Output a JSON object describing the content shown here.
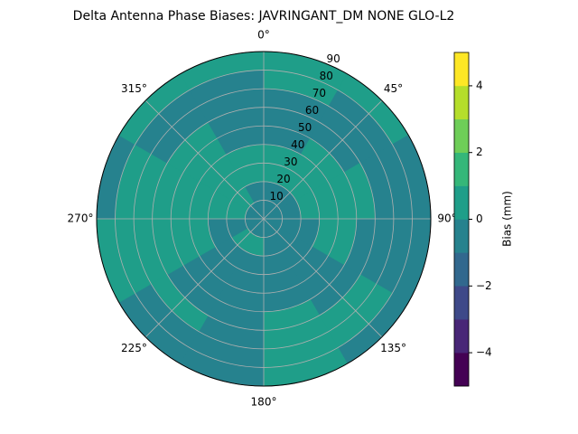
{
  "chart_data": {
    "type": "polar_contour",
    "title": "Delta Antenna Phase Biases: JAVRINGANT_DM   NONE GLO-L2",
    "colorbar_label": "Bias (mm)",
    "theta_edges": [
      0,
      30,
      60,
      90,
      120,
      150,
      180,
      210,
      240,
      270,
      300,
      330,
      360
    ],
    "r_edges": [
      0,
      10,
      20,
      30,
      40,
      50,
      60,
      70,
      80,
      90
    ],
    "values": [
      [
        -0.5,
        -0.5,
        -0.5,
        -0.5,
        -0.5,
        -0.5,
        -0.5,
        -0.5,
        -0.5,
        -0.5,
        -0.5,
        -0.5
      ],
      [
        -0.5,
        -0.5,
        -0.5,
        -0.5,
        -0.5,
        -0.5,
        0.5,
        0.5,
        -0.5,
        0.5,
        0.5,
        -0.5
      ],
      [
        0.5,
        0.5,
        0.5,
        -0.5,
        -0.5,
        -0.5,
        -0.5,
        -0.5,
        -0.5,
        0.5,
        0.5,
        0.5
      ],
      [
        0.5,
        0.5,
        0.5,
        0.5,
        -0.5,
        -0.5,
        -0.5,
        -0.5,
        0.5,
        0.5,
        0.5,
        0.5
      ],
      [
        -0.5,
        0.5,
        0.5,
        0.5,
        -0.5,
        -0.5,
        -0.5,
        -0.5,
        0.5,
        0.5,
        0.5,
        -0.5
      ],
      [
        -0.5,
        -0.5,
        0.5,
        -0.5,
        -0.5,
        0.5,
        -0.5,
        -0.5,
        0.5,
        0.5,
        0.5,
        -0.5
      ],
      [
        -0.5,
        -0.5,
        -0.5,
        -0.5,
        0.5,
        0.5,
        -0.5,
        0.5,
        0.5,
        0.5,
        -0.5,
        -0.5
      ],
      [
        0.5,
        -0.5,
        -0.5,
        -0.5,
        0.5,
        0.5,
        -0.5,
        -0.5,
        0.5,
        0.5,
        -0.5,
        -0.5
      ],
      [
        0.5,
        0.5,
        -0.5,
        -0.5,
        -0.5,
        0.5,
        -0.5,
        -0.5,
        0.5,
        -0.5,
        0.5,
        0.5
      ]
    ],
    "levels": [
      -5,
      -4,
      -3,
      -2,
      -1,
      0,
      1,
      2,
      3,
      4,
      5
    ],
    "colors": [
      "#440154",
      "#482677",
      "#3e4989",
      "#31688e",
      "#26828e",
      "#1f9e89",
      "#35b779",
      "#6ece58",
      "#b5de2b",
      "#fde725"
    ],
    "rlim": [
      0,
      90
    ],
    "rticks": [
      10,
      20,
      30,
      40,
      50,
      60,
      70,
      80,
      90
    ],
    "thetaticks": [
      {
        "value": 0,
        "label": "0°"
      },
      {
        "value": 45,
        "label": "45°"
      },
      {
        "value": 90,
        "label": "90°"
      },
      {
        "value": 135,
        "label": "135°"
      },
      {
        "value": 180,
        "label": "180°"
      },
      {
        "value": 225,
        "label": "225°"
      },
      {
        "value": 270,
        "label": "270°"
      },
      {
        "value": 315,
        "label": "315°"
      }
    ],
    "clim": [
      -5,
      5
    ],
    "cticks": [
      {
        "value": -4,
        "label": "−4"
      },
      {
        "value": -2,
        "label": "−2"
      },
      0,
      2,
      4
    ],
    "grid": true
  }
}
